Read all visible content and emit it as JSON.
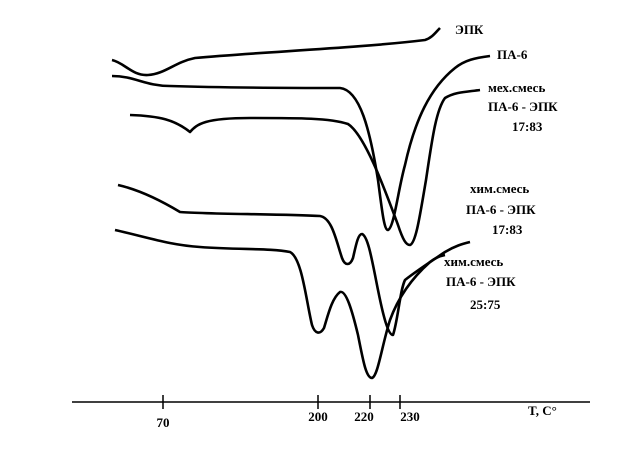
{
  "axis": {
    "label": "T, C°",
    "ticks": [
      "70",
      "200",
      "220",
      "230"
    ]
  },
  "curves": [
    {
      "label": [
        "ЭПК"
      ]
    },
    {
      "label": [
        "ПА-6"
      ]
    },
    {
      "label": [
        "мех.смесь",
        "ПА-6 - ЭПК",
        "17:83"
      ]
    },
    {
      "label": [
        "хим.смесь",
        "ПА-6 - ЭПК",
        "17:83"
      ]
    },
    {
      "label": [
        "хим.смесь",
        "ПА-6 - ЭПК",
        "25:75"
      ]
    }
  ]
}
